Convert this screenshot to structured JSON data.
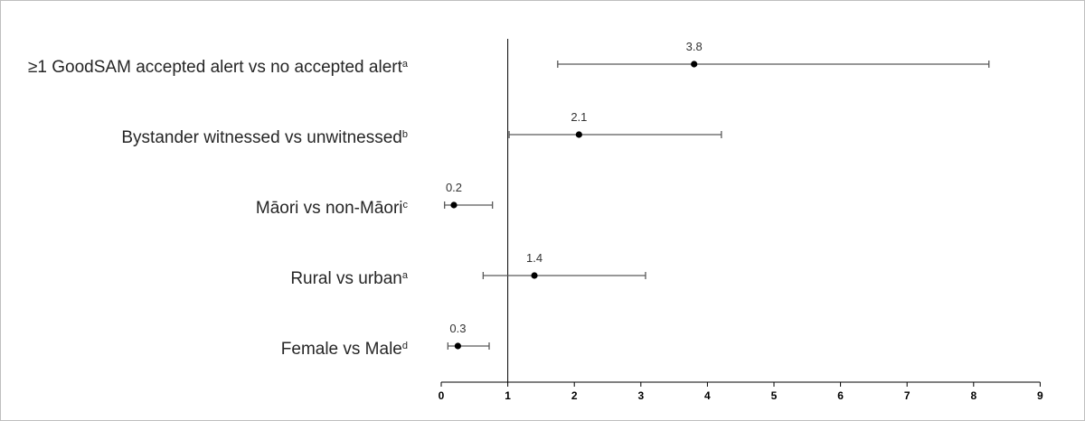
{
  "chart_data": {
    "type": "forest",
    "rows": [
      {
        "label": "≥1 GoodSAM accepted alert vs no accepted alert",
        "sup": "a",
        "estimate": 3.8,
        "ci_low": 1.75,
        "ci_high": 8.23,
        "value_label": "3.8"
      },
      {
        "label": "Bystander witnessed vs unwitnessed",
        "sup": "b",
        "estimate": 2.07,
        "ci_low": 1.02,
        "ci_high": 4.21,
        "value_label": "2.1"
      },
      {
        "label": "Māori vs non-Māori",
        "sup": "c",
        "estimate": 0.19,
        "ci_low": 0.05,
        "ci_high": 0.77,
        "value_label": "0.2"
      },
      {
        "label": "Rural vs urban",
        "sup": "a",
        "estimate": 1.4,
        "ci_low": 0.63,
        "ci_high": 3.07,
        "value_label": "1.4"
      },
      {
        "label": "Female vs Male",
        "sup": "d",
        "estimate": 0.25,
        "ci_low": 0.1,
        "ci_high": 0.72,
        "value_label": "0.3"
      }
    ],
    "xlim": [
      0,
      9
    ],
    "xticks": [
      0,
      1,
      2,
      3,
      4,
      5,
      6,
      7,
      8,
      9
    ],
    "reference_line": 1,
    "grid": false,
    "colors": {
      "mark": "#000000",
      "ci_line": "#595959",
      "axis": "#000000",
      "label_text": "#262626"
    }
  }
}
